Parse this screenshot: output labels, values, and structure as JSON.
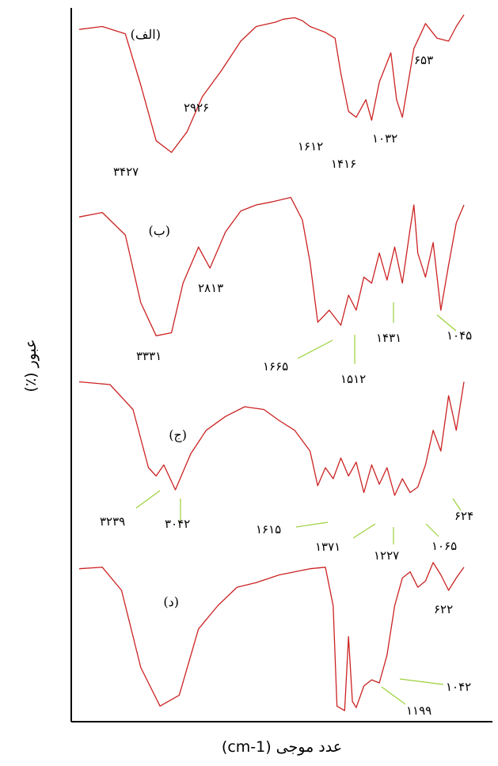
{
  "chart_data": {
    "type": "line",
    "xlabel": "عدد موجی (cm-1)",
    "ylabel": "عبور (٪)",
    "colors": {
      "trace": "#cc2222",
      "leader": "#9bd13a",
      "axis": "#000000"
    },
    "panels": [
      {
        "label": "(الف)",
        "peaks": [
          "۳۴۲۷",
          "۲۹۲۶",
          "۱۶۱۲",
          "۱۴۱۶",
          "۱۰۳۲",
          "۶۵۳"
        ],
        "series": [
          {
            "x": [
              0,
              0.06,
              0.12,
              0.16,
              0.2,
              0.24,
              0.28,
              0.32,
              0.37,
              0.42,
              0.46,
              0.51,
              0.53,
              0.56,
              0.58,
              0.6,
              0.62,
              0.64,
              0.665,
              0.68,
              0.7,
              0.72,
              0.745,
              0.76,
              0.78,
              0.81,
              0.825,
              0.84,
              0.87,
              0.9,
              0.93,
              0.96,
              0.98,
              1.0
            ],
            "y": [
              0.12,
              0.1,
              0.15,
              0.5,
              0.88,
              0.96,
              0.82,
              0.58,
              0.4,
              0.2,
              0.1,
              0.07,
              0.05,
              0.04,
              0.06,
              0.1,
              0.12,
              0.14,
              0.18,
              0.42,
              0.68,
              0.72,
              0.6,
              0.74,
              0.48,
              0.28,
              0.6,
              0.72,
              0.25,
              0.08,
              0.18,
              0.2,
              0.1,
              0.02
            ]
          }
        ]
      },
      {
        "label": "(ب)",
        "peaks": [
          "۳۳۳۱",
          "۲۸۱۳",
          "۱۶۶۵",
          "۱۵۱۲",
          "۱۴۳۱",
          "۱۰۴۵"
        ],
        "series": [
          {
            "x": [
              0,
              0.06,
              0.12,
              0.16,
              0.2,
              0.24,
              0.27,
              0.31,
              0.34,
              0.38,
              0.42,
              0.46,
              0.5,
              0.55,
              0.58,
              0.6,
              0.62,
              0.65,
              0.68,
              0.7,
              0.72,
              0.74,
              0.76,
              0.78,
              0.8,
              0.82,
              0.84,
              0.86,
              0.87,
              0.88,
              0.9,
              0.92,
              0.94,
              0.96,
              0.98,
              1.0
            ],
            "y": [
              0.18,
              0.15,
              0.3,
              0.75,
              0.97,
              0.95,
              0.62,
              0.38,
              0.52,
              0.28,
              0.14,
              0.1,
              0.08,
              0.05,
              0.2,
              0.48,
              0.88,
              0.8,
              0.9,
              0.7,
              0.8,
              0.58,
              0.62,
              0.42,
              0.6,
              0.38,
              0.62,
              0.26,
              0.1,
              0.42,
              0.58,
              0.35,
              0.8,
              0.5,
              0.22,
              0.1
            ]
          }
        ]
      },
      {
        "label": "(ج)",
        "peaks": [
          "۳۲۳۹",
          "۳۰۴۲",
          "۱۶۱۵",
          "۱۳۷۱",
          "۱۲۲۷",
          "۱۰۶۵",
          "۶۲۴"
        ],
        "series": [
          {
            "x": [
              0,
              0.08,
              0.14,
              0.18,
              0.2,
              0.22,
              0.25,
              0.29,
              0.33,
              0.38,
              0.43,
              0.48,
              0.52,
              0.56,
              0.6,
              0.62,
              0.64,
              0.66,
              0.68,
              0.7,
              0.72,
              0.74,
              0.76,
              0.78,
              0.8,
              0.82,
              0.84,
              0.86,
              0.88,
              0.9,
              0.92,
              0.94,
              0.96,
              0.98,
              1.0
            ],
            "y": [
              0.1,
              0.12,
              0.3,
              0.72,
              0.78,
              0.7,
              0.88,
              0.62,
              0.45,
              0.35,
              0.28,
              0.3,
              0.38,
              0.45,
              0.6,
              0.85,
              0.72,
              0.8,
              0.65,
              0.78,
              0.68,
              0.9,
              0.7,
              0.84,
              0.72,
              0.92,
              0.8,
              0.9,
              0.86,
              0.7,
              0.45,
              0.6,
              0.2,
              0.45,
              0.1
            ]
          }
        ]
      },
      {
        "label": "(د)",
        "peaks": [
          "۶۲۲",
          "۱۰۴۲",
          "۱۱۹۹"
        ],
        "series": [
          {
            "x": [
              0,
              0.06,
              0.11,
              0.16,
              0.21,
              0.26,
              0.31,
              0.36,
              0.41,
              0.46,
              0.52,
              0.56,
              0.6,
              0.64,
              0.66,
              0.67,
              0.69,
              0.7,
              0.71,
              0.72,
              0.74,
              0.76,
              0.78,
              0.8,
              0.82,
              0.84,
              0.86,
              0.88,
              0.9,
              0.92,
              0.94,
              0.96,
              0.98,
              1.0
            ],
            "y": [
              0.06,
              0.05,
              0.2,
              0.7,
              0.95,
              0.88,
              0.45,
              0.3,
              0.18,
              0.15,
              0.1,
              0.08,
              0.06,
              0.05,
              0.3,
              0.95,
              0.98,
              0.5,
              0.92,
              0.96,
              0.82,
              0.78,
              0.8,
              0.62,
              0.3,
              0.12,
              0.08,
              0.18,
              0.14,
              0.02,
              0.1,
              0.2,
              0.12,
              0.05
            ]
          }
        ]
      }
    ]
  }
}
